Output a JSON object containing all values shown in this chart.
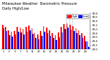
{
  "title": "Milwaukee Weather  Barometric Pressure",
  "subtitle": "Daily High/Low",
  "bar_width": 0.38,
  "high_color": "#ff0000",
  "low_color": "#0000ff",
  "background_color": "#ffffff",
  "ylim_min": 29.0,
  "ylim_max": 30.8,
  "yticks": [
    29.0,
    29.2,
    29.4,
    29.6,
    29.8,
    30.0,
    30.2,
    30.4,
    30.6,
    30.8
  ],
  "ytick_labels": [
    "29.0",
    "29.2",
    "29.4",
    "29.6",
    "29.8",
    "30.0",
    "30.2",
    "30.4",
    "30.6",
    "30.8"
  ],
  "days": [
    1,
    2,
    3,
    4,
    5,
    6,
    7,
    8,
    9,
    10,
    11,
    12,
    13,
    14,
    15,
    16,
    17,
    18,
    19,
    20,
    21,
    22,
    23,
    24,
    25,
    26,
    27,
    28,
    29,
    30
  ],
  "high": [
    30.22,
    30.12,
    29.95,
    29.88,
    29.92,
    30.1,
    30.08,
    30.0,
    30.12,
    30.18,
    30.05,
    29.8,
    29.72,
    29.9,
    30.15,
    30.08,
    29.95,
    29.8,
    29.7,
    29.85,
    30.1,
    30.25,
    30.3,
    30.22,
    30.15,
    30.05,
    29.95,
    29.8,
    29.65,
    29.4
  ],
  "low": [
    30.05,
    29.9,
    29.7,
    29.62,
    29.72,
    29.88,
    29.85,
    29.72,
    29.88,
    29.95,
    29.78,
    29.55,
    29.48,
    29.65,
    29.88,
    29.82,
    29.68,
    29.55,
    29.45,
    29.6,
    29.85,
    30.0,
    30.08,
    29.98,
    29.9,
    29.8,
    29.7,
    29.55,
    29.4,
    29.1
  ],
  "title_fontsize": 3.8,
  "tick_fontsize": 2.8,
  "legend_fontsize": 3.0,
  "dashed_lines": [
    22,
    23,
    24
  ],
  "legend_label_high": "High",
  "legend_label_low": "Low"
}
